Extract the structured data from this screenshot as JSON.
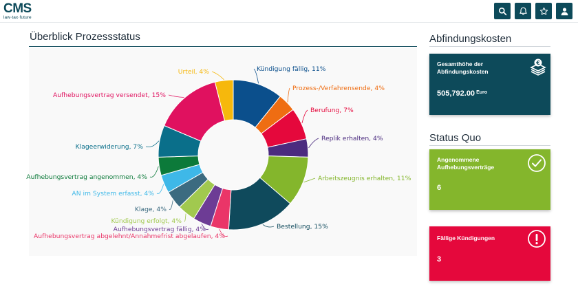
{
  "header": {
    "logo_main": "CMS",
    "logo_sub": "law·tax·future",
    "buttons": [
      {
        "icon": "search-icon"
      },
      {
        "icon": "bell-icon"
      },
      {
        "icon": "star-icon"
      },
      {
        "icon": "user-icon"
      }
    ]
  },
  "overview": {
    "title": "Überblick Prozessstatus"
  },
  "chart_data": {
    "type": "pie",
    "donut": true,
    "slices": [
      {
        "label": "Kündigung fällig, 11%",
        "value": 11,
        "color": "#0b4f8c"
      },
      {
        "label": "Prozess-/Verfahrensende, 4%",
        "value": 4,
        "color": "#ef6d12"
      },
      {
        "label": "Berufung, 7%",
        "value": 7,
        "color": "#e5083c"
      },
      {
        "label": "Replik erhalten, 4%",
        "value": 4,
        "color": "#4b2b7f"
      },
      {
        "label": "Arbeitszeugnis erhalten, 11%",
        "value": 11,
        "color": "#84b62c"
      },
      {
        "label": "Bestellung, 15%",
        "value": 15,
        "color": "#0f4a5c"
      },
      {
        "label": "Aufhebungsvertrag abgelehnt/Annahmefrist abgelaufen, 4%",
        "value": 4,
        "color": "#ea3568"
      },
      {
        "label": "Aufhebungsvertrag fällig, 4%",
        "value": 4,
        "color": "#6d3c95"
      },
      {
        "label": "Kündigung erfolgt, 4%",
        "value": 4,
        "color": "#a1c94f"
      },
      {
        "label": "Klage, 4%",
        "value": 4,
        "color": "#3c6b80"
      },
      {
        "label": "AN im System erfasst, 4%",
        "value": 4,
        "color": "#3eb8e8"
      },
      {
        "label": "Aufhebungsvertrag angenommen, 4%",
        "value": 4,
        "color": "#0c7a3a"
      },
      {
        "label": "Klageerwiderung, 7%",
        "value": 7,
        "color": "#0a6f8a"
      },
      {
        "label": "Aufhebungsvertrag versendet, 15%",
        "value": 15,
        "color": "#e0115f"
      },
      {
        "label": "Urteil, 4%",
        "value": 4,
        "color": "#f6b80c"
      }
    ]
  },
  "severance": {
    "title": "Abfindungskosten",
    "card_label": "Gesamthöhe der Abfindungskosten",
    "amount": "505,792.00",
    "currency": "Euro",
    "color": "#0d4a5a",
    "icon": "money-stack-icon"
  },
  "status_quo": {
    "title": "Status Quo",
    "accepted_label": "Angenommene Aufhebungsverträge",
    "accepted_value": "6",
    "accepted_color": "#84b62c",
    "accepted_icon": "check-circle-icon",
    "due_label": "Fällige Kündigungen",
    "due_value": "3",
    "due_color": "#e5083c",
    "due_icon": "exclamation-circle-icon"
  }
}
